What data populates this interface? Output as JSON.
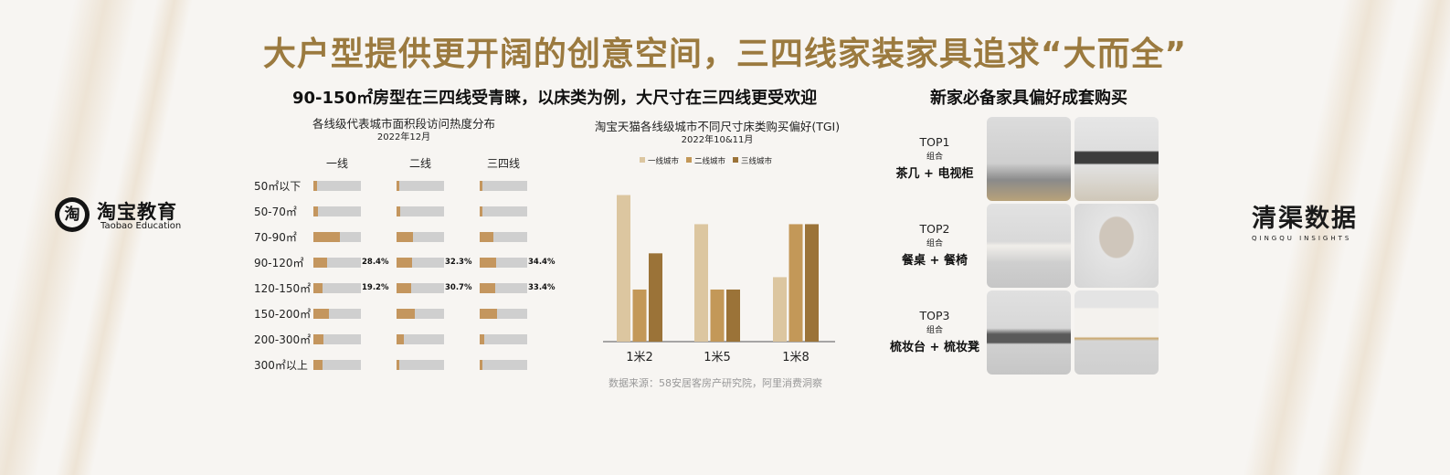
{
  "main_title": "大户型提供更开阔的创意空间，三四线家装家具追求“大而全”",
  "left_subtitle": "90-150㎡房型在三四线受青睐，以床类为例，大尺寸在三四线更受欢迎",
  "right_subtitle": "新家必备家具偏好成套购买",
  "logo_left": {
    "cn": "淘宝教育",
    "en": "Taobao Education",
    "glyph": "淘"
  },
  "logo_right": {
    "cn": "清渠数据",
    "en": "QINGQU INSIGHTS"
  },
  "heat_table": {
    "title": "各线级代表城市面积段访问热度分布",
    "subtitle": "2022年12月",
    "columns": [
      "一线",
      "二线",
      "三四线"
    ],
    "rows": [
      {
        "label": "50㎡以下",
        "values": [
          0.07,
          0.06,
          0.05
        ],
        "labels": [
          "",
          "",
          ""
        ]
      },
      {
        "label": "50-70㎡",
        "values": [
          0.09,
          0.07,
          0.06
        ],
        "labels": [
          "",
          "",
          ""
        ]
      },
      {
        "label": "70-90㎡",
        "values": [
          0.55,
          0.34,
          0.28
        ],
        "labels": [
          "",
          "",
          ""
        ]
      },
      {
        "label": "90-120㎡",
        "values": [
          0.284,
          0.323,
          0.344
        ],
        "labels": [
          "28.4%",
          "32.3%",
          "34.4%"
        ]
      },
      {
        "label": "120-150㎡",
        "values": [
          0.192,
          0.307,
          0.334
        ],
        "labels": [
          "19.2%",
          "30.7%",
          "33.4%"
        ]
      },
      {
        "label": "150-200㎡",
        "values": [
          0.33,
          0.38,
          0.36
        ],
        "labels": [
          "",
          "",
          ""
        ]
      },
      {
        "label": "200-300㎡",
        "values": [
          0.22,
          0.16,
          0.1
        ],
        "labels": [
          "",
          "",
          ""
        ]
      },
      {
        "label": "300㎡以上",
        "values": [
          0.2,
          0.06,
          0.05
        ],
        "labels": [
          "",
          "",
          ""
        ]
      }
    ],
    "colors": {
      "fill": "#c4965e",
      "track": "#cfcfcf"
    }
  },
  "chart_data": {
    "type": "bar",
    "title": "淘宝天猫各线级城市不同尺寸床类购买偏好(TGI)",
    "subtitle": "2022年10&11月",
    "categories": [
      "1米2",
      "1米5",
      "1米8"
    ],
    "series": [
      {
        "name": "一线城市",
        "color": "#dcc6a0",
        "values": [
          166,
          133,
          73
        ]
      },
      {
        "name": "二线城市",
        "color": "#c39858",
        "values": [
          59,
          59,
          133
        ]
      },
      {
        "name": "三线城市",
        "color": "#9b7338",
        "values": [
          100,
          59,
          133
        ]
      }
    ],
    "ylim": [
      0,
      180
    ],
    "grid": false,
    "legend": "top"
  },
  "source": "数据来源：58安居客房产研究院，阿里消费洞察",
  "top_sets": [
    {
      "rank": "TOP1",
      "sub": "组合",
      "combo": "茶几 + 电视柜",
      "items": [
        "coffee-table-image",
        "tv-cabinet-image"
      ]
    },
    {
      "rank": "TOP2",
      "sub": "组合",
      "combo": "餐桌 + 餐椅",
      "items": [
        "dining-table-image",
        "dining-chair-image"
      ]
    },
    {
      "rank": "TOP3",
      "sub": "组合",
      "combo": "梳妆台 + 梳妆凳",
      "items": [
        "dressing-table-image",
        "dressing-stool-image"
      ]
    }
  ],
  "accent_color": "#9b7a3f"
}
